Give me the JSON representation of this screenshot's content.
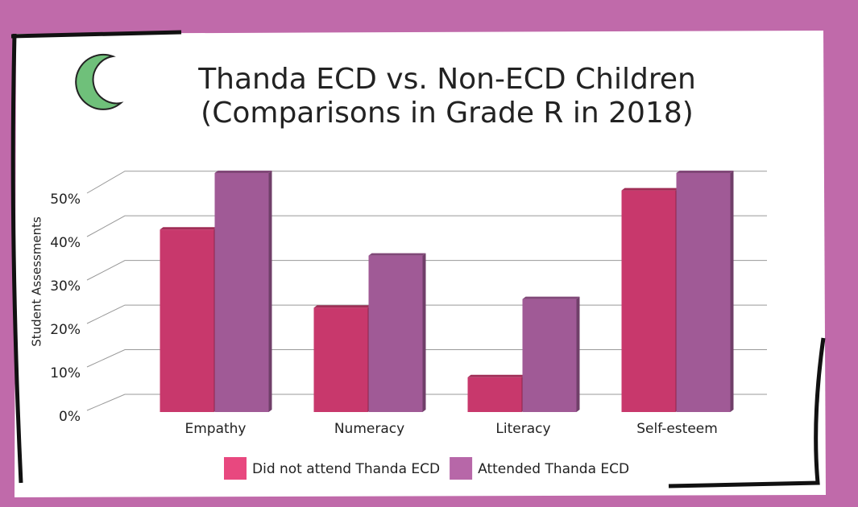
{
  "chart_data": {
    "type": "bar3d",
    "title": "Thanda ECD vs. Non-ECD Children",
    "subtitle": "(Comparisons in Grade R in 2018)",
    "y_label": "Student Assessments",
    "categories": [
      "Empathy",
      "Numeracy",
      "Literacy",
      "Self-esteem"
    ],
    "series": [
      {
        "name": "Did not attend Thanda ECD",
        "color": "#c8386c",
        "legend_color": "#e8487f",
        "values": [
          42,
          24,
          8,
          51
        ]
      },
      {
        "name": "Attended Thanda ECD",
        "color": "#a05a96",
        "legend_color": "#b767a8",
        "values": [
          55,
          36,
          26,
          55
        ]
      }
    ],
    "ylim": [
      0,
      55
    ],
    "yticks": [
      {
        "value": 0,
        "label": "0%"
      },
      {
        "value": 10,
        "label": "10%"
      },
      {
        "value": 20,
        "label": "20%"
      },
      {
        "value": 30,
        "label": "30%"
      },
      {
        "value": 40,
        "label": "40%"
      },
      {
        "value": 50,
        "label": "50%"
      }
    ],
    "grid": true,
    "legend": "bottom"
  }
}
